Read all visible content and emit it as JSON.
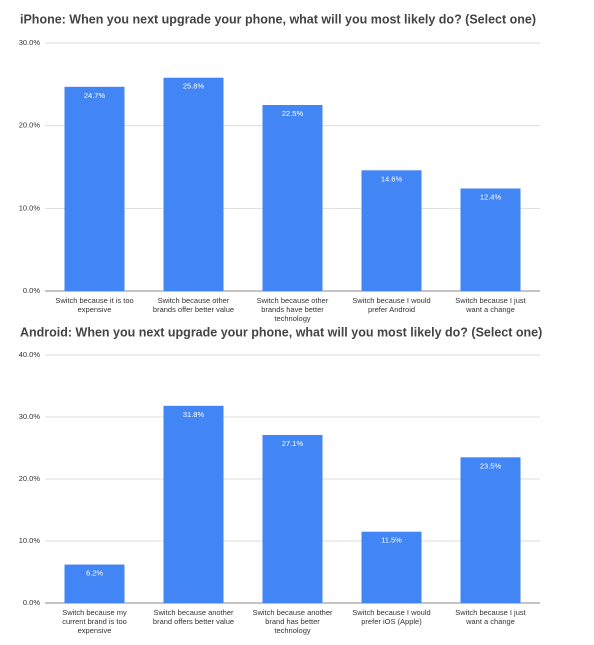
{
  "chart_data": [
    {
      "type": "bar",
      "title": "iPhone: When you next upgrade your phone, what will you most likely do? (Select one)",
      "categories": [
        "Switch because it is too expensive",
        "Switch because other brands offer better value",
        "Switch because other brands have better technology",
        "Switch because I would prefer Android",
        "Switch because I just want a change"
      ],
      "values": [
        24.7,
        25.8,
        22.5,
        14.6,
        12.4
      ],
      "value_labels": [
        "24.7%",
        "25.8%",
        "22.5%",
        "14.6%",
        "12.4%"
      ],
      "color": "#4285f4",
      "ylim": [
        0,
        30
      ],
      "yticks": [
        {
          "value": 0,
          "label": "0.0%"
        },
        {
          "value": 10,
          "label": "10.0%"
        },
        {
          "value": 20,
          "label": "20.0%"
        },
        {
          "value": 30,
          "label": "30.0%"
        }
      ],
      "grid": true
    },
    {
      "type": "bar",
      "title": "Android: When you next upgrade your phone, what will you most likely do? (Select one)",
      "categories": [
        "Switch because my current brand is too expensive",
        "Switch because another brand offers better value",
        "Switch because another brand has better technology",
        "Switch because I would prefer iOS (Apple)",
        "Switch because I just want a change"
      ],
      "values": [
        6.2,
        31.8,
        27.1,
        11.5,
        23.5
      ],
      "value_labels": [
        "6.2%",
        "31.8%",
        "27.1%",
        "11.5%",
        "23.5%"
      ],
      "color": "#4285f4",
      "ylim": [
        0,
        40
      ],
      "yticks": [
        {
          "value": 0,
          "label": "0.0%"
        },
        {
          "value": 10,
          "label": "10.0%"
        },
        {
          "value": 20,
          "label": "20.0%"
        },
        {
          "value": 30,
          "label": "30.0%"
        },
        {
          "value": 40,
          "label": "40.0%"
        }
      ],
      "grid": true
    }
  ]
}
